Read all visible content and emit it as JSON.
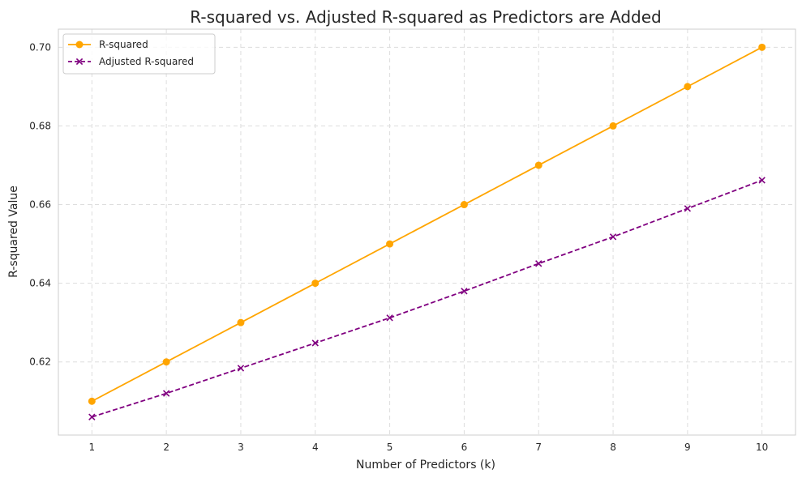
{
  "chart_data": {
    "type": "line",
    "title": "R-squared vs. Adjusted R-squared as Predictors are Added",
    "xlabel": "Number of Predictors (k)",
    "ylabel": "R-squared Value",
    "x": [
      1,
      2,
      3,
      4,
      5,
      6,
      7,
      8,
      9,
      10
    ],
    "xticks": [
      "1",
      "2",
      "3",
      "4",
      "5",
      "6",
      "7",
      "8",
      "9",
      "10"
    ],
    "yticks": [
      "0.62",
      "0.64",
      "0.66",
      "0.68",
      "0.70"
    ],
    "ytick_values": [
      0.62,
      0.64,
      0.66,
      0.68,
      0.7
    ],
    "xlim": [
      0.55,
      10.45
    ],
    "ylim": [
      0.6014,
      0.7046
    ],
    "grid": true,
    "legend_position": "top-left",
    "series": [
      {
        "name": "R-squared",
        "color": "#FFA500",
        "line_style": "solid",
        "marker": "circle",
        "values": [
          0.61,
          0.62,
          0.63,
          0.64,
          0.65,
          0.66,
          0.67,
          0.68,
          0.69,
          0.7
        ]
      },
      {
        "name": "Adjusted R-squared",
        "color": "#800080",
        "line_style": "dashed",
        "marker": "x",
        "values": [
          0.606,
          0.612,
          0.6184,
          0.6248,
          0.6312,
          0.638,
          0.645,
          0.6518,
          0.659,
          0.6662
        ]
      }
    ]
  }
}
